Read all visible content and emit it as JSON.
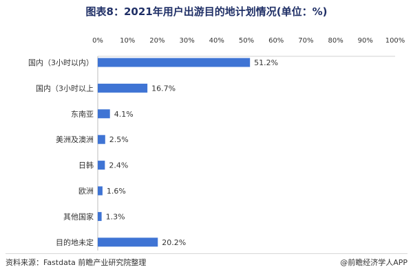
{
  "chart_title": "图表8：2021年用户出游目的地计划情况(单位：%)",
  "source_text": "资料来源：Fastdata 前瞻产业研究院整理",
  "credit_text": "@前瞻经济学人APP",
  "colors": {
    "bar": "#3f74d4",
    "title": "#1f2f66",
    "text": "#333333"
  },
  "chart_data": {
    "type": "bar",
    "orientation": "horizontal",
    "title": "图表8：2021年用户出游目的地计划情况(单位：%)",
    "categories": [
      "国内（3小时以内）",
      "国内（3小时以上",
      "东南亚",
      "美洲及澳洲",
      "日韩",
      "欧洲",
      "其他国家",
      "目的地未定"
    ],
    "values": [
      51.2,
      16.7,
      4.1,
      2.5,
      2.4,
      1.6,
      1.3,
      20.2
    ],
    "value_labels": [
      "51.2%",
      "16.7%",
      "4.1%",
      "2.5%",
      "2.4%",
      "1.6%",
      "1.3%",
      "20.2%"
    ],
    "xlim": [
      0,
      100
    ],
    "x_ticks": [
      0,
      10,
      20,
      30,
      40,
      50,
      60,
      70,
      80,
      90,
      100
    ],
    "x_tick_labels": [
      "0%",
      "10%",
      "20%",
      "30%",
      "40%",
      "50%",
      "60%",
      "70%",
      "80%",
      "90%",
      "100%"
    ],
    "x_axis_position": "top",
    "grid": false,
    "legend": "none"
  }
}
